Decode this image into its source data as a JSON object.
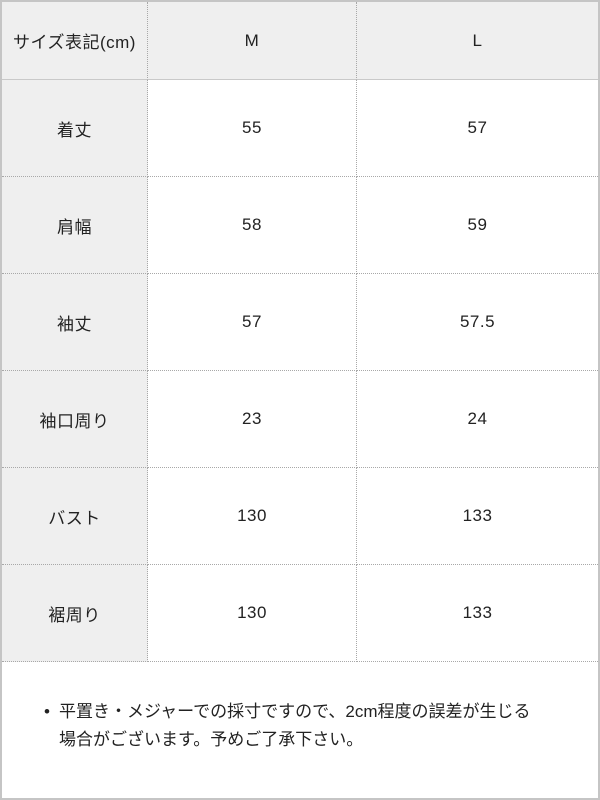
{
  "chart_data": {
    "type": "table",
    "columns": [
      "サイズ表記(cm)",
      "M",
      "L"
    ],
    "rows": [
      {
        "label": "着丈",
        "values": [
          "55",
          "57"
        ]
      },
      {
        "label": "肩幅",
        "values": [
          "58",
          "59"
        ]
      },
      {
        "label": "袖丈",
        "values": [
          "57",
          "57.5"
        ]
      },
      {
        "label": "袖口周り",
        "values": [
          "23",
          "24"
        ]
      },
      {
        "label": "バスト",
        "values": [
          "130",
          "133"
        ]
      },
      {
        "label": "裾周り",
        "values": [
          "130",
          "133"
        ]
      }
    ]
  },
  "note": {
    "bullet": "•",
    "text": "平置き・メジャーでの採寸ですので、2cm程度の誤差が生じる場合がございます。予めご了承下さい。"
  },
  "colors": {
    "header_bg": "#efefef",
    "cell_bg": "#ffffff",
    "outer_border": "#c5c5c5",
    "inner_border_dotted": "#a8a8a8",
    "header_border": "#c9c9c9",
    "text": "#222222"
  }
}
